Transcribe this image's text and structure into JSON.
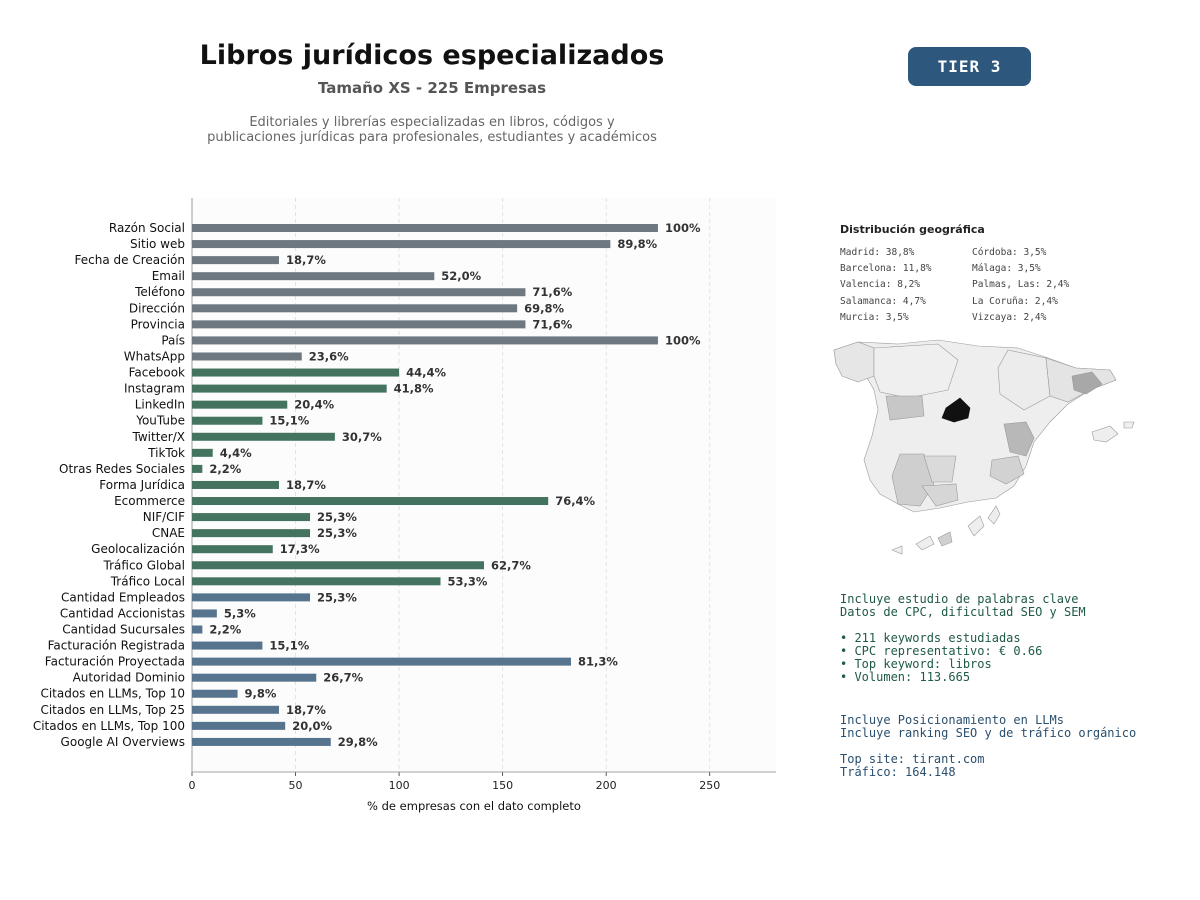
{
  "header": {
    "title": "Libros jurídicos especializados",
    "subtitle": "Tamaño XS - 225 Empresas",
    "description_line1": "Editoriales y librerías especializadas en libros, códigos y",
    "description_line2": "publicaciones jurídicas para profesionales, estudiantes y académicos",
    "tier_label": "TIER 3",
    "tier_color": "#2e577d"
  },
  "chart_data": {
    "type": "bar",
    "orientation": "horizontal",
    "xlabel": "% de empresas con el dato completo",
    "xlim": [
      0,
      282
    ],
    "xticks": [
      0,
      50,
      100,
      150,
      200,
      250
    ],
    "grid": "vertical dashed",
    "categories": [
      "Razón Social",
      "Sitio web",
      "Fecha de Creación",
      "Email",
      "Teléfono",
      "Dirección",
      "Provincia",
      "País",
      "WhatsApp",
      "Facebook",
      "Instagram",
      "LinkedIn",
      "YouTube",
      "Twitter/X",
      "TikTok",
      "Otras Redes Sociales",
      "Forma Jurídica",
      "Ecommerce",
      "NIF/CIF",
      "CNAE",
      "Geolocalización",
      "Tráfico Global",
      "Tráfico Local",
      "Cantidad Empleados",
      "Cantidad Accionistas",
      "Cantidad Sucursales",
      "Facturación Registrada",
      "Facturación Proyectada",
      "Autoridad Dominio",
      "Citados en LLMs, Top 10",
      "Citados en LLMs, Top 25",
      "Citados en LLMs, Top 100",
      "Google AI Overviews"
    ],
    "values": [
      225,
      202,
      42,
      117,
      161,
      157,
      161,
      225,
      53,
      100,
      94,
      46,
      34,
      69,
      10,
      5,
      42,
      172,
      57,
      57,
      39,
      141,
      120,
      57,
      12,
      5,
      34,
      183,
      60,
      22,
      42,
      45,
      67
    ],
    "labels": [
      "100%",
      "89,8%",
      "18,7%",
      "52,0%",
      "71,6%",
      "69,8%",
      "71,6%",
      "100%",
      "23,6%",
      "44,4%",
      "41,8%",
      "20,4%",
      "15,1%",
      "30,7%",
      "4,4%",
      "2,2%",
      "18,7%",
      "76,4%",
      "25,3%",
      "25,3%",
      "17,3%",
      "62,7%",
      "53,3%",
      "25,3%",
      "5,3%",
      "2,2%",
      "15,1%",
      "81,3%",
      "26,7%",
      "9,8%",
      "18,7%",
      "20,0%",
      "29,8%"
    ],
    "groups": [
      "gray",
      "gray",
      "gray",
      "gray",
      "gray",
      "gray",
      "gray",
      "gray",
      "gray",
      "green",
      "green",
      "green",
      "green",
      "green",
      "green",
      "green",
      "green",
      "green",
      "green",
      "green",
      "green",
      "green",
      "green",
      "blue",
      "blue",
      "blue",
      "blue",
      "blue",
      "blue",
      "blue",
      "blue",
      "blue",
      "blue"
    ],
    "group_colors": {
      "gray": "#6e7880",
      "green": "#44735f",
      "blue": "#56748e"
    }
  },
  "geo": {
    "title": "Distribución geográfica",
    "col1": [
      "Madrid: 38,8%",
      "Barcelona: 11,8%",
      "Valencia: 8,2%",
      "Salamanca: 4,7%",
      "Murcia: 3,5%"
    ],
    "col2": [
      "Córdoba: 3,5%",
      "Málaga: 3,5%",
      "Palmas, Las: 2,4%",
      "La Coruña: 2,4%",
      "Vizcaya: 2,4%"
    ]
  },
  "seo": {
    "color": "#1f5a45",
    "lines": [
      "Incluye estudio de palabras clave",
      "Datos de CPC, dificultad SEO y SEM",
      "",
      "• 211 keywords estudiadas",
      "• CPC representativo: € 0.66",
      "• Top keyword: libros",
      "• Volumen: 113.665"
    ]
  },
  "llm": {
    "color": "#2b4f6e",
    "lines": [
      "Incluye Posicionamiento en LLMs",
      "Incluye ranking SEO y de tráfico orgánico",
      "",
      "Top site: tirant.com",
      "Tráfico: 164.148"
    ]
  }
}
